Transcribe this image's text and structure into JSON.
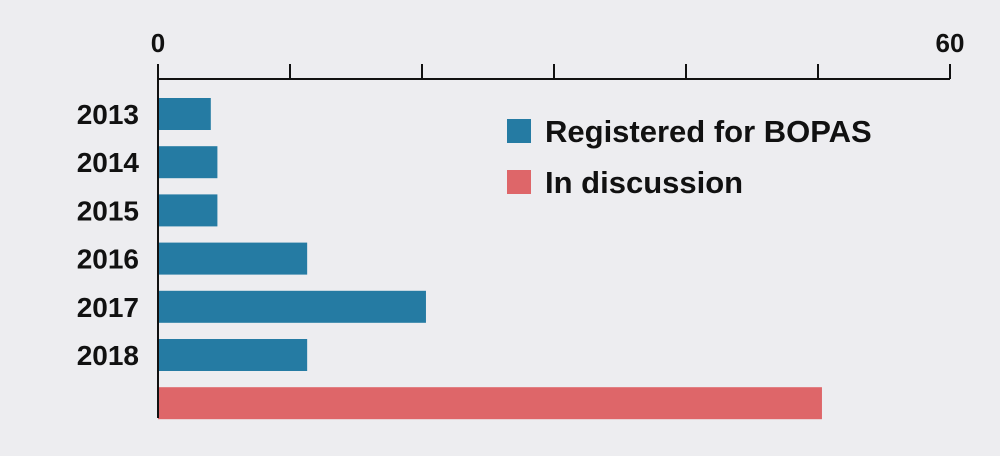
{
  "chart_data": {
    "type": "bar",
    "orientation": "horizontal",
    "categories": [
      "2013",
      "2014",
      "2015",
      "2016",
      "2017",
      "2018",
      ""
    ],
    "series": [
      {
        "name": "Registered for BOPAS",
        "color": "#257ba3",
        "values": [
          4,
          4.5,
          4.5,
          11.3,
          20.3,
          11.3,
          null
        ]
      },
      {
        "name": "In discussion",
        "color": "#de6669",
        "values": [
          null,
          null,
          null,
          null,
          null,
          null,
          50.3
        ]
      }
    ],
    "xlim": [
      0,
      60
    ],
    "x_tick_values": [
      0,
      10,
      20,
      30,
      40,
      50,
      60
    ],
    "x_tick_labels": [
      "0",
      "",
      "",
      "",
      "",
      "",
      "60"
    ],
    "axis_position": "top",
    "grid": false,
    "legend_position": "top-right",
    "title": "",
    "xlabel": "",
    "ylabel": ""
  }
}
